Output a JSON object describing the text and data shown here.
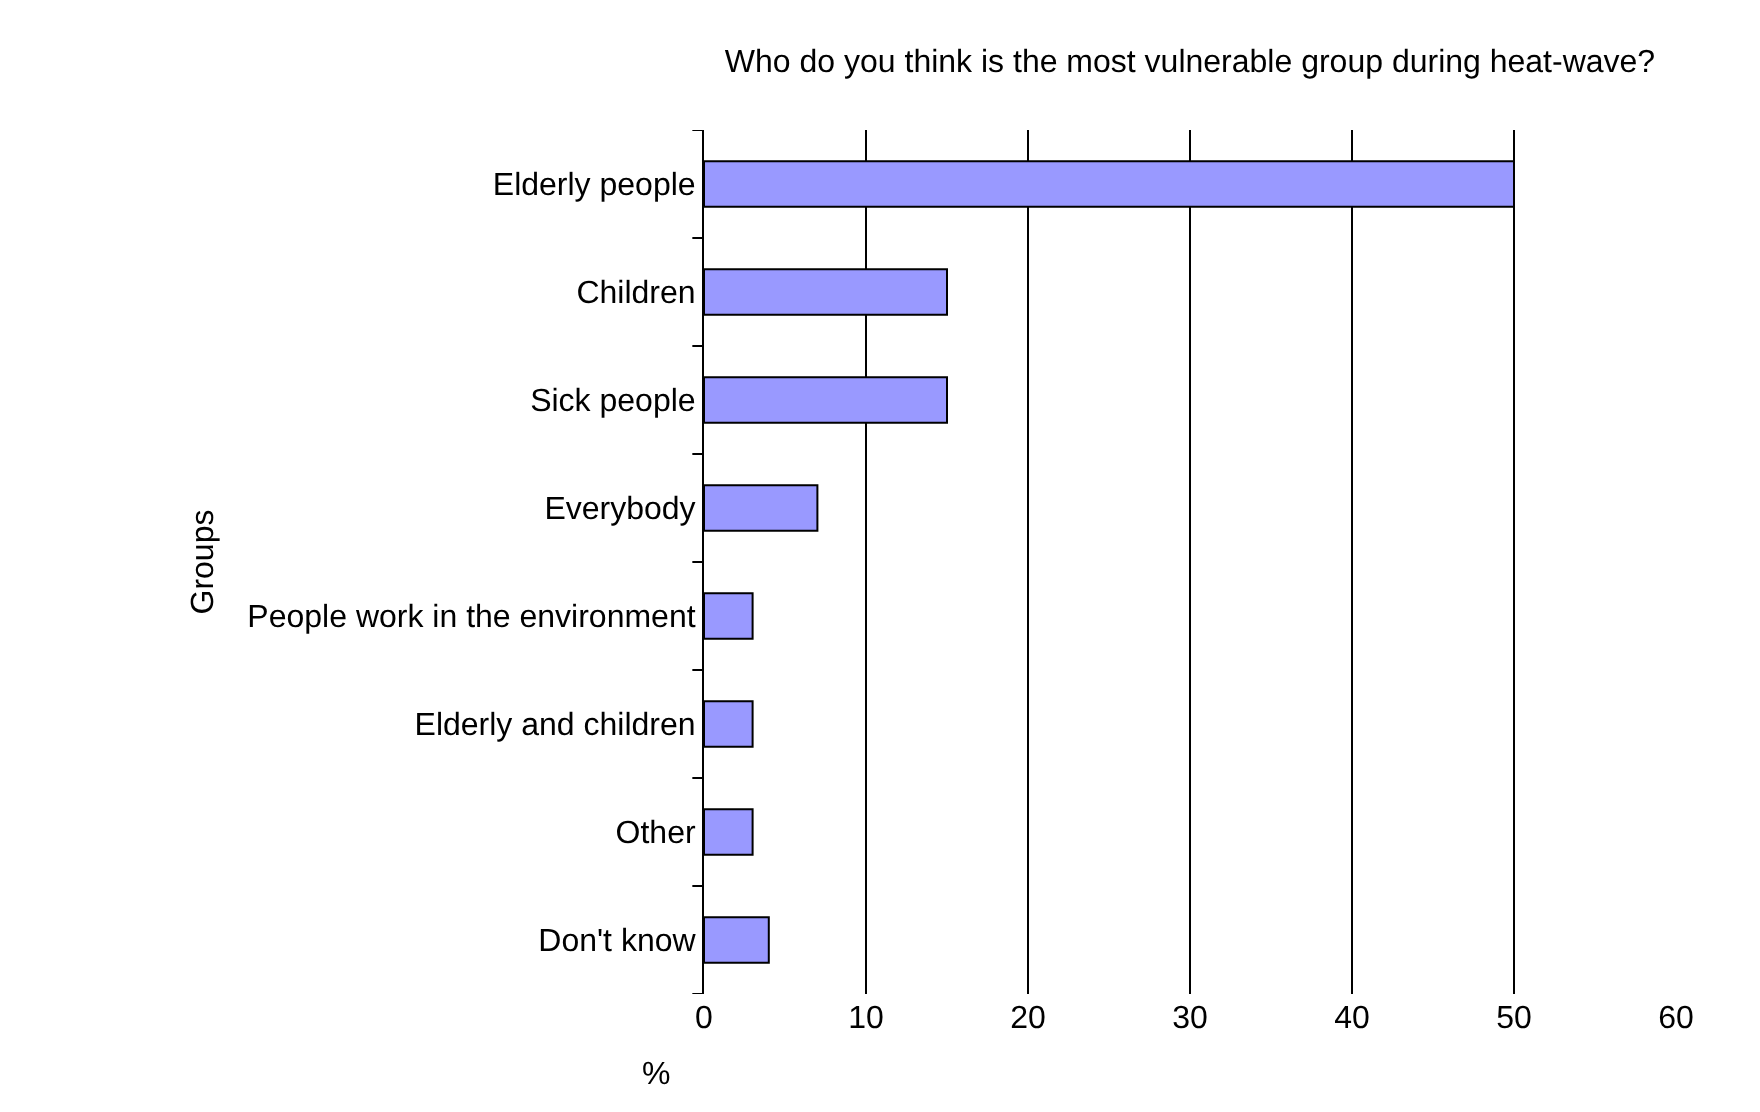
{
  "chart_data": {
    "type": "bar",
    "orientation": "horizontal",
    "title": "Who do you think is the most vulnerable group during heat-wave?",
    "xlabel": "%",
    "ylabel": "Groups",
    "categories": [
      "Elderly people",
      "Children",
      "Sick people",
      "Everybody",
      "People work in the environment",
      "Elderly and children",
      "Other",
      "Don't know"
    ],
    "values": [
      50,
      15,
      15,
      7,
      3,
      3,
      3,
      4
    ],
    "color": "#9999ff",
    "xlim": [
      0,
      60
    ],
    "xticks": [
      0,
      10,
      20,
      30,
      40,
      50,
      60
    ],
    "grid": "x"
  }
}
